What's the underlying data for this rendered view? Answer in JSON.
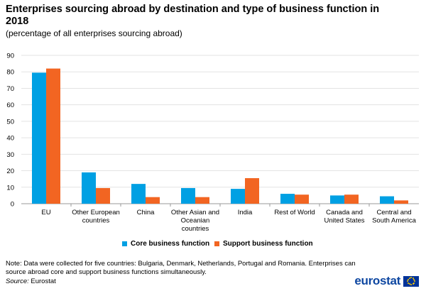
{
  "chart_data": {
    "type": "bar",
    "title": "Enterprises sourcing abroad by destination and type of business function in 2018",
    "subtitle": "(percentage of all enterprises sourcing abroad)",
    "categories": [
      [
        "EU"
      ],
      [
        "Other European",
        "countries"
      ],
      [
        "China"
      ],
      [
        "Other Asian and",
        "Oceanian",
        "countries"
      ],
      [
        "India"
      ],
      [
        "Rest of World"
      ],
      [
        "Canada and",
        "United States"
      ],
      [
        "Central and",
        "South America"
      ]
    ],
    "series": [
      {
        "name": "Core business function",
        "color": "#00a0e3",
        "values": [
          79.5,
          19,
          12,
          9.5,
          9,
          6,
          5,
          4.5
        ]
      },
      {
        "name": "Support business function",
        "color": "#f26522",
        "values": [
          82,
          9.5,
          4,
          4,
          15.5,
          5.5,
          5.5,
          2
        ]
      }
    ],
    "ylim": [
      0,
      90
    ],
    "yticks": [
      0,
      10,
      20,
      30,
      40,
      50,
      60,
      70,
      80,
      90
    ],
    "grid": true,
    "legend": "bottom-center"
  },
  "note": "Note: Data were collected for five countries: Bulgaria, Denmark, Netherlands, Portugal and Romania. Enterprises can source abroad core and support business functions simultaneously.",
  "source_label": "Source:",
  "source_value": " Eurostat",
  "logo_text": "eurostat"
}
